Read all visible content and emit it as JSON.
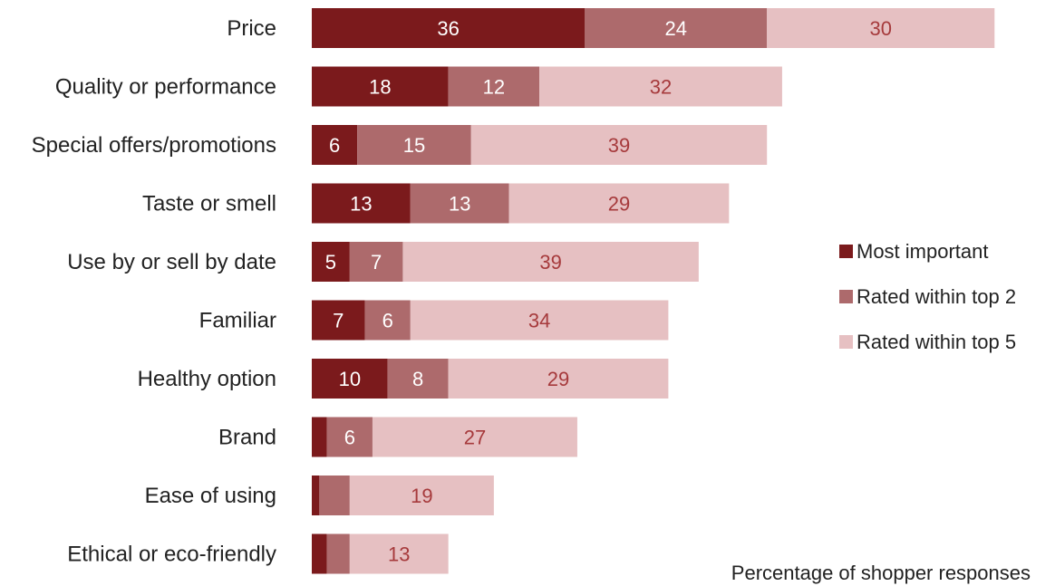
{
  "chart_data": {
    "type": "bar",
    "orientation": "horizontal",
    "stacked": true,
    "categories": [
      "Price",
      "Quality or performance",
      "Special offers/promotions",
      "Taste or smell",
      "Use by or sell by date",
      "Familiar",
      "Healthy option",
      "Brand",
      "Ease of using",
      "Ethical or eco-friendly"
    ],
    "series": [
      {
        "name": "Most important",
        "color": "#7b1a1c",
        "values": [
          36,
          18,
          6,
          13,
          5,
          7,
          10,
          2,
          1,
          2
        ],
        "labels": [
          "36",
          "18",
          "6",
          "13",
          "5",
          "7",
          "10",
          "",
          "",
          ""
        ]
      },
      {
        "name": "Rated within top 2",
        "color": "#ad6a6c",
        "values": [
          24,
          12,
          15,
          13,
          7,
          6,
          8,
          6,
          4,
          3
        ],
        "labels": [
          "24",
          "12",
          "15",
          "13",
          "7",
          "6",
          "8",
          "6",
          "",
          ""
        ]
      },
      {
        "name": "Rated within top 5",
        "color": "#e6c0c2",
        "values": [
          30,
          32,
          39,
          29,
          39,
          34,
          29,
          27,
          19,
          13
        ],
        "labels": [
          "30",
          "32",
          "39",
          "29",
          "39",
          "34",
          "29",
          "27",
          "19",
          "13"
        ]
      }
    ],
    "xlim": [
      0,
      90
    ],
    "grid": false,
    "legend_position": "right",
    "footnote": "Percentage of shopper responses"
  }
}
